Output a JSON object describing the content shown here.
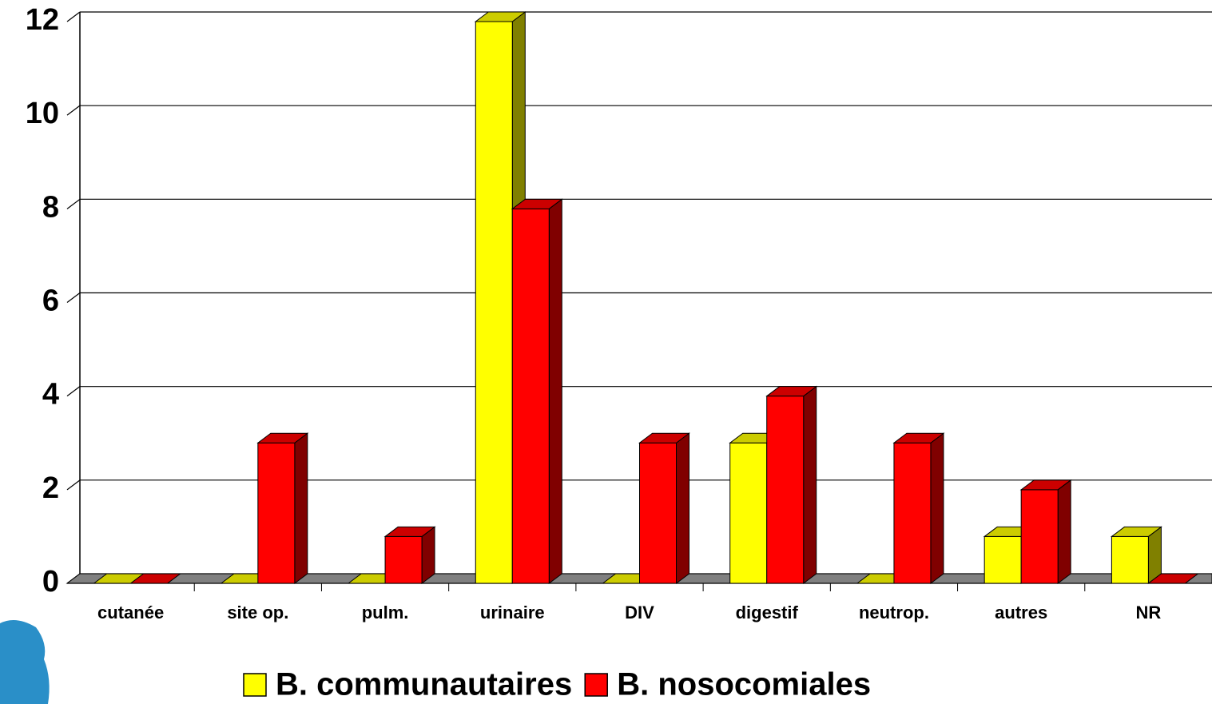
{
  "chart_data": {
    "type": "bar3d",
    "categories": [
      "cutanée",
      "site op.",
      "pulm.",
      "urinaire",
      "DIV",
      "digestif",
      "neutrop.",
      "autres",
      "NR"
    ],
    "series": [
      {
        "name": "B. communautaires",
        "color": "#ffff00",
        "values": [
          0,
          0,
          0,
          12,
          0,
          3,
          0,
          1,
          1
        ]
      },
      {
        "name": "B. nosocomiales",
        "color": "#ff0000",
        "values": [
          0,
          3,
          1,
          8,
          3,
          4,
          3,
          2,
          0
        ]
      }
    ],
    "ylim": [
      0,
      12
    ],
    "yticks": [
      0,
      2,
      4,
      6,
      8,
      10,
      12
    ],
    "grid": true,
    "legend": "bottom"
  }
}
